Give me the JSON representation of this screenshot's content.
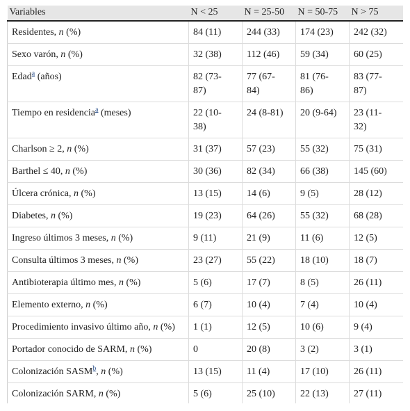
{
  "table": {
    "header": [
      "Variables",
      "N < 25",
      "N = 25-50",
      "N = 50-75",
      "N > 75"
    ],
    "rows": [
      {
        "label": [
          {
            "t": "Residentes, "
          },
          {
            "t": "n",
            "style": "i"
          },
          {
            "t": " (%)"
          }
        ],
        "cells": [
          "84 (11)",
          "244 (33)",
          "174 (23)",
          "242 (32)"
        ]
      },
      {
        "label": [
          {
            "t": "Sexo varón, "
          },
          {
            "t": "n",
            "style": "i"
          },
          {
            "t": " (%)"
          }
        ],
        "cells": [
          "32 (38)",
          "112 (46)",
          "59 (34)",
          "60 (25)"
        ]
      },
      {
        "label": [
          {
            "t": "Edad"
          },
          {
            "t": "a",
            "style": "sup"
          },
          {
            "t": " (años)"
          }
        ],
        "cells": [
          "82 (73-87)",
          "77 (67-84)",
          "81 (76-86)",
          "83 (77-87)"
        ]
      },
      {
        "label": [
          {
            "t": "Tiempo en residencia"
          },
          {
            "t": "a",
            "style": "sup"
          },
          {
            "t": " (meses)"
          }
        ],
        "cells": [
          "22 (10-38)",
          "24 (8-81)",
          "20 (9-64)",
          "23 (11-32)"
        ]
      },
      {
        "label": [
          {
            "t": "Charlson ≥ 2, "
          },
          {
            "t": "n",
            "style": "i"
          },
          {
            "t": " (%)"
          }
        ],
        "cells": [
          "31 (37)",
          "57 (23)",
          "55 (32)",
          "75 (31)"
        ]
      },
      {
        "label": [
          {
            "t": "Barthel ≤ 40, "
          },
          {
            "t": "n",
            "style": "i"
          },
          {
            "t": " (%)"
          }
        ],
        "cells": [
          "30 (36)",
          "82 (34)",
          "66 (38)",
          "145 (60)"
        ]
      },
      {
        "label": [
          {
            "t": "Úlcera crónica, "
          },
          {
            "t": "n",
            "style": "i"
          },
          {
            "t": " (%)"
          }
        ],
        "cells": [
          "13 (15)",
          "14 (6)",
          "9 (5)",
          "28 (12)"
        ]
      },
      {
        "label": [
          {
            "t": "Diabetes, "
          },
          {
            "t": "n",
            "style": "i"
          },
          {
            "t": " (%)"
          }
        ],
        "cells": [
          "19 (23)",
          "64 (26)",
          "55 (32)",
          "68 (28)"
        ]
      },
      {
        "label": [
          {
            "t": "Ingreso últimos 3 meses, "
          },
          {
            "t": "n",
            "style": "i"
          },
          {
            "t": " (%)"
          }
        ],
        "cells": [
          "9 (11)",
          "21 (9)",
          "11 (6)",
          "12 (5)"
        ]
      },
      {
        "label": [
          {
            "t": "Consulta últimos 3 meses, "
          },
          {
            "t": "n",
            "style": "i"
          },
          {
            "t": " (%)"
          }
        ],
        "cells": [
          "23 (27)",
          "55 (22)",
          "18 (10)",
          "18 (7)"
        ]
      },
      {
        "label": [
          {
            "t": "Antibioterapia último mes, "
          },
          {
            "t": "n",
            "style": "i"
          },
          {
            "t": " (%)"
          }
        ],
        "cells": [
          "5 (6)",
          "17 (7)",
          "8 (5)",
          "26 (11)"
        ]
      },
      {
        "label": [
          {
            "t": "Elemento externo, "
          },
          {
            "t": "n",
            "style": "i"
          },
          {
            "t": " (%)"
          }
        ],
        "cells": [
          "6 (7)",
          "10 (4)",
          "7 (4)",
          "10 (4)"
        ]
      },
      {
        "label": [
          {
            "t": "Procedimiento invasivo último año, "
          },
          {
            "t": "n",
            "style": "i"
          },
          {
            "t": " (%)"
          }
        ],
        "cells": [
          "1 (1)",
          "12 (5)",
          "10 (6)",
          "9 (4)"
        ]
      },
      {
        "label": [
          {
            "t": "Portador conocido de SARM, "
          },
          {
            "t": "n",
            "style": "i"
          },
          {
            "t": " (%)"
          }
        ],
        "cells": [
          "0",
          "20 (8)",
          "3 (2)",
          "3 (1)"
        ]
      },
      {
        "label": [
          {
            "t": "Colonización SASM"
          },
          {
            "t": "b",
            "style": "sup"
          },
          {
            "t": ", "
          },
          {
            "t": "n",
            "style": "i"
          },
          {
            "t": " (%)"
          }
        ],
        "cells": [
          "13 (15)",
          "11 (4)",
          "17 (10)",
          "26 (11)"
        ]
      },
      {
        "label": [
          {
            "t": "Colonización SARM, "
          },
          {
            "t": "n",
            "style": "i"
          },
          {
            "t": " (%)"
          }
        ],
        "cells": [
          "5 (6)",
          "25 (10)",
          "22 (13)",
          "27 (11)"
        ]
      }
    ]
  }
}
